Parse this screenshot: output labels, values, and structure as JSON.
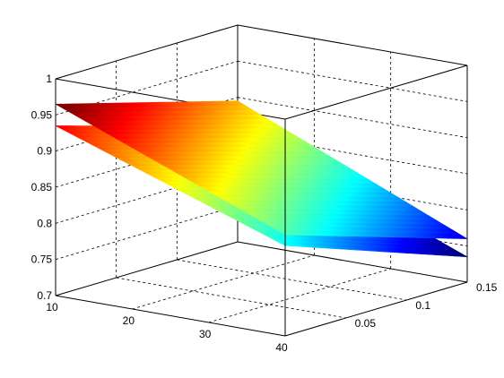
{
  "chart_data": {
    "type": "surface",
    "title": "",
    "xlabel": "",
    "ylabel": "",
    "zlabel": "",
    "grid": true,
    "colormap": "jet",
    "xlim": [
      10,
      40
    ],
    "ylim": [
      0,
      0.15
    ],
    "zlim": [
      0.7,
      1
    ],
    "x_ticks": [
      "10",
      "20",
      "30",
      "40"
    ],
    "y_ticks": [
      "0.05",
      "0.1",
      "0.15"
    ],
    "z_ticks": [
      "0.7",
      "0.75",
      "0.8",
      "0.85",
      "0.9",
      "0.95",
      "1"
    ],
    "series": [
      {
        "x": [
          10,
          40
        ],
        "y": [
          0,
          0.15
        ],
        "z": [
          [
            0.965,
            0.84
          ],
          [
            0.895,
            0.76
          ]
        ]
      },
      {
        "x": [
          10,
          40
        ],
        "y": [
          0,
          0.15
        ],
        "z": [
          [
            0.935,
            0.825
          ],
          [
            0.86,
            0.735
          ]
        ]
      }
    ]
  }
}
